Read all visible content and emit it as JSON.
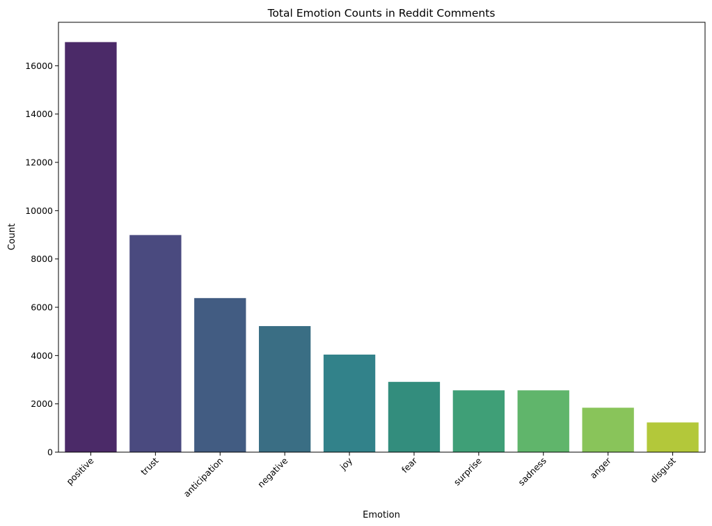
{
  "chart_data": {
    "type": "bar",
    "title": "Total Emotion Counts in Reddit Comments",
    "xlabel": "Emotion",
    "ylabel": "Count",
    "categories": [
      "positive",
      "trust",
      "anticipation",
      "negative",
      "joy",
      "fear",
      "surprise",
      "sadness",
      "anger",
      "disgust"
    ],
    "values": [
      16980,
      8990,
      6380,
      5220,
      4040,
      2910,
      2560,
      2560,
      1840,
      1230
    ],
    "colors": [
      "#4b2a68",
      "#4a4a7f",
      "#425c82",
      "#3a6e84",
      "#32828a",
      "#338d7d",
      "#3f9f77",
      "#60b56b",
      "#89c45a",
      "#b3c83a"
    ],
    "ylim": [
      0,
      17800
    ],
    "yticks": [
      0,
      2000,
      4000,
      6000,
      8000,
      10000,
      12000,
      14000,
      16000
    ],
    "grid": false,
    "legend": "none"
  }
}
